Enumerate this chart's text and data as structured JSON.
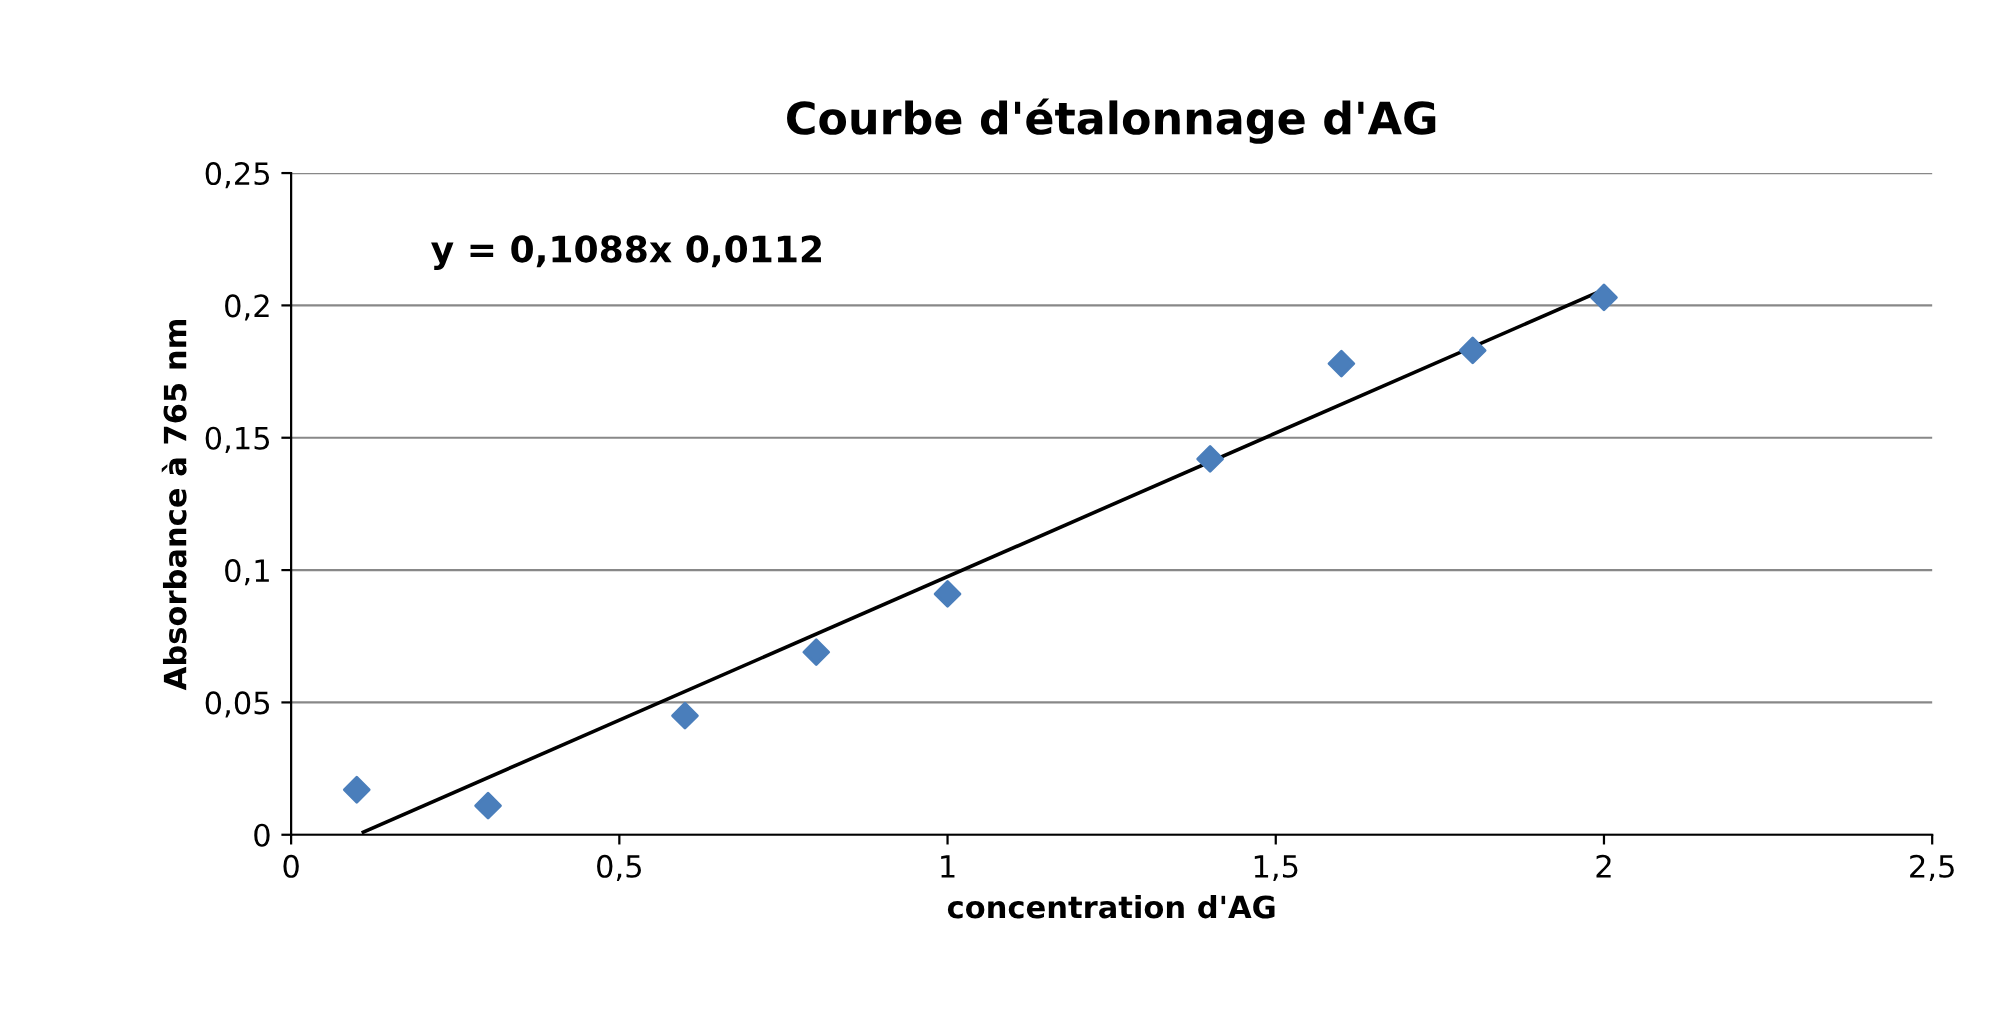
{
  "chart_data": {
    "type": "scatter",
    "title": "Courbe d'étalonnage d'AG",
    "xlabel": "concentration d'AG",
    "ylabel": "Absorbance à 765 nm",
    "annotations": [
      "y = 0,1088x 0,0112"
    ],
    "x": [
      0.1,
      0.3,
      0.6,
      0.8,
      1.0,
      1.4,
      1.6,
      1.8,
      2.0
    ],
    "series": [
      {
        "color": "#4a7ebb",
        "marker": "diamond",
        "values": [
          0.017,
          0.011,
          0.045,
          0.069,
          0.091,
          0.142,
          0.178,
          0.183,
          0.203
        ]
      },
      {
        "type": "line",
        "color": "#000000",
        "marker": "none",
        "line_style": "solid",
        "x": [
          0.11,
          2.0
        ],
        "values": [
          0.001,
          0.206
        ]
      }
    ],
    "xlim": [
      0,
      2.5
    ],
    "ylim": [
      0,
      0.25
    ],
    "xticks": [
      0,
      {
        "value": 0.5,
        "label": "0,5"
      },
      1,
      {
        "value": 1.5,
        "label": "1,5"
      },
      2,
      {
        "value": 2.5,
        "label": "2,5"
      }
    ],
    "yticks": [
      0,
      {
        "value": 0.05,
        "label": "0,05"
      },
      {
        "value": 0.1,
        "label": "0,1"
      },
      {
        "value": 0.15,
        "label": "0,15"
      },
      {
        "value": 0.2,
        "label": "0,2"
      },
      {
        "value": 0.25,
        "label": "0,25"
      }
    ],
    "grid": "y",
    "legend": false
  }
}
